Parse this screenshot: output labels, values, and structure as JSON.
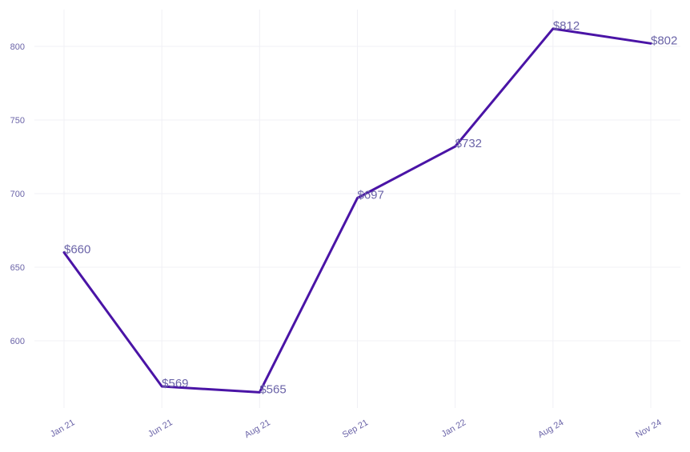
{
  "chart_data": {
    "type": "line",
    "title": "",
    "xlabel": "",
    "ylabel": "",
    "categories": [
      "Jan 21",
      "Jun 21",
      "Aug 21",
      "Sep 21",
      "Jan 22",
      "Aug 24",
      "Nov 24"
    ],
    "series": [
      {
        "values": [
          660,
          569,
          565,
          697,
          732,
          812,
          802
        ],
        "labels": [
          "$660",
          "$569",
          "$565",
          "$697",
          "$732",
          "$812",
          "$802"
        ]
      }
    ],
    "ylim": [
      555,
      825
    ],
    "yticks": [
      600,
      650,
      700,
      750,
      800
    ],
    "grid": true,
    "legend": "none",
    "colors": {
      "line": "#4a14a6",
      "text": "#6b64a8",
      "grid": "#f0f0f5"
    }
  }
}
